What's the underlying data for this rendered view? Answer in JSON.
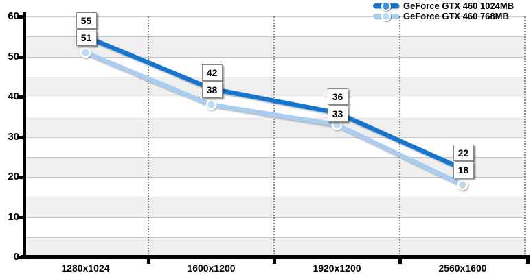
{
  "chart_data": {
    "type": "line",
    "title": "",
    "xlabel": "",
    "ylabel": "",
    "categories": [
      "1280x1024",
      "1600x1200",
      "1920x1200",
      "2560x1600"
    ],
    "series": [
      {
        "name": "GeForce GTX 460 1024MB",
        "values": [
          55,
          42,
          36,
          22
        ],
        "line_color": "#1375cd",
        "marker_color": "#4292dc"
      },
      {
        "name": "GeForce GTX 460 768MB",
        "values": [
          51,
          38,
          33,
          18
        ],
        "line_color": "#a8cdf0",
        "marker_color": "#bedbf6"
      }
    ],
    "ylim": [
      0,
      60
    ],
    "ytick_step": 10,
    "yticklabels": [
      "0",
      "10",
      "20",
      "30",
      "40",
      "50",
      "60"
    ],
    "band_step": 5,
    "grid": true,
    "data_labels": true,
    "legend_position": "top-right",
    "colors": {
      "band_fill": "#efefef",
      "grid_line": "#c9c9c9",
      "separator_dots": "#8a8a8a",
      "axis": "#000000",
      "label_box_bg": "#ffffff",
      "label_box_border": "#878787",
      "text": "#000000"
    }
  }
}
